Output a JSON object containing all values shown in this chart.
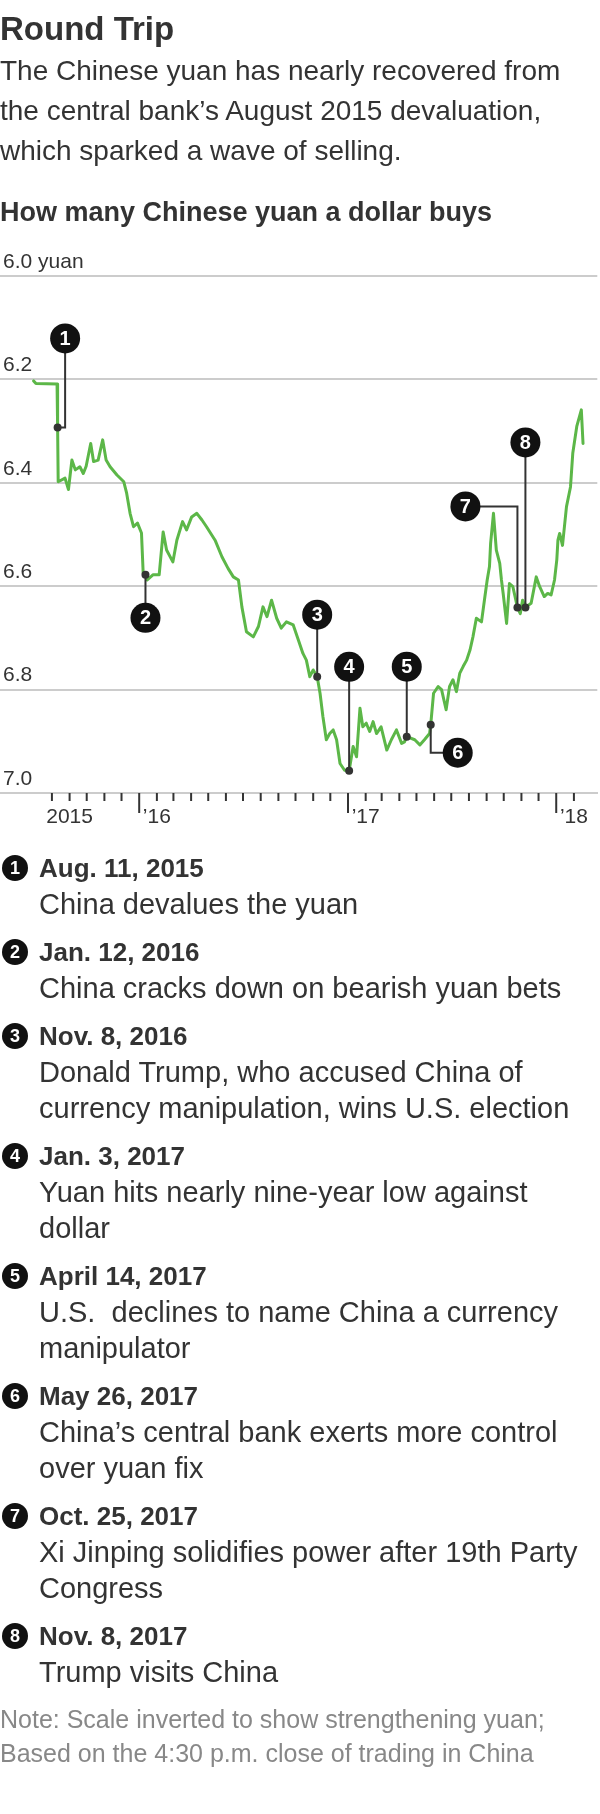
{
  "chart_data": {
    "type": "line",
    "title": "Round Trip",
    "subtitle": "The Chinese yuan has nearly recovered from the central bank’s August 2015 devaluation, which sparked a wave of selling.",
    "ylabel": "How many Chinese yuan a dollar buys",
    "x": [
      "2015-06-30",
      "2015-07-04",
      "2015-08-10",
      "2015-08-11",
      "2015-08-12",
      "2015-08-24",
      "2015-08-30",
      "2015-09-05",
      "2015-09-11",
      "2015-09-19",
      "2015-09-25",
      "2015-09-30",
      "2015-10-08",
      "2015-10-13",
      "2015-10-21",
      "2015-10-29",
      "2015-11-04",
      "2015-11-11",
      "2015-11-23",
      "2015-12-05",
      "2015-12-10",
      "2015-12-16",
      "2015-12-22",
      "2015-12-29",
      "2016-01-05",
      "2016-01-08",
      "2016-01-12",
      "2016-01-15",
      "2016-01-25",
      "2016-02-05",
      "2016-02-12",
      "2016-02-18",
      "2016-02-29",
      "2016-03-07",
      "2016-03-17",
      "2016-03-24",
      "2016-04-02",
      "2016-04-11",
      "2016-04-20",
      "2016-04-28",
      "2016-05-13",
      "2016-05-25",
      "2016-06-05",
      "2016-06-14",
      "2016-06-23",
      "2016-06-29",
      "2016-07-07",
      "2016-07-19",
      "2016-07-28",
      "2016-08-05",
      "2016-08-12",
      "2016-08-20",
      "2016-08-29",
      "2016-09-06",
      "2016-09-15",
      "2016-09-27",
      "2016-10-06",
      "2016-10-14",
      "2016-10-20",
      "2016-10-26",
      "2016-11-01",
      "2016-11-08",
      "2016-11-13",
      "2016-11-18",
      "2016-11-24",
      "2016-11-30",
      "2016-12-06",
      "2016-12-12",
      "2016-12-18",
      "2016-12-26",
      "2017-01-03",
      "2017-01-10",
      "2017-01-16",
      "2017-01-22",
      "2017-01-27",
      "2017-02-02",
      "2017-02-08",
      "2017-02-14",
      "2017-02-20",
      "2017-02-28",
      "2017-03-10",
      "2017-03-18",
      "2017-03-27",
      "2017-04-05",
      "2017-04-10",
      "2017-04-14",
      "2017-04-28",
      "2017-05-07",
      "2017-05-15",
      "2017-05-24",
      "2017-05-26",
      "2017-05-31",
      "2017-06-08",
      "2017-06-14",
      "2017-06-22",
      "2017-06-28",
      "2017-07-04",
      "2017-07-10",
      "2017-07-16",
      "2017-07-22",
      "2017-07-28",
      "2017-08-03",
      "2017-08-08",
      "2017-08-14",
      "2017-08-23",
      "2017-08-29",
      "2017-09-02",
      "2017-09-06",
      "2017-09-08",
      "2017-09-13",
      "2017-09-18",
      "2017-09-24",
      "2017-09-27",
      "2017-09-30",
      "2017-10-06",
      "2017-10-11",
      "2017-10-17",
      "2017-10-25",
      "2017-10-30",
      "2017-11-03",
      "2017-11-08",
      "2017-11-18",
      "2017-11-27",
      "2017-12-03",
      "2017-12-11",
      "2017-12-17",
      "2017-12-23",
      "2017-12-29",
      "2018-01-02",
      "2018-01-04",
      "2018-01-07",
      "2018-01-12",
      "2018-01-19",
      "2018-01-26",
      "2018-01-30",
      "2018-02-06",
      "2018-02-14",
      "2018-02-17"
    ],
    "series": [
      {
        "color": "#5cb748",
        "values": [
          6.203,
          6.208,
          6.209,
          6.293,
          6.398,
          6.391,
          6.413,
          6.356,
          6.375,
          6.369,
          6.382,
          6.368,
          6.324,
          6.359,
          6.356,
          6.317,
          6.356,
          6.369,
          6.385,
          6.398,
          6.42,
          6.459,
          6.485,
          6.478,
          6.497,
          6.575,
          6.578,
          6.588,
          6.578,
          6.578,
          6.495,
          6.53,
          6.553,
          6.511,
          6.475,
          6.491,
          6.466,
          6.459,
          6.472,
          6.485,
          6.511,
          6.543,
          6.566,
          6.582,
          6.588,
          6.64,
          6.688,
          6.698,
          6.678,
          6.64,
          6.659,
          6.627,
          6.662,
          6.681,
          6.669,
          6.675,
          6.704,
          6.73,
          6.743,
          6.775,
          6.762,
          6.775,
          6.807,
          6.852,
          6.897,
          6.885,
          6.878,
          6.897,
          6.943,
          6.956,
          6.957,
          6.91,
          6.93,
          6.836,
          6.872,
          6.865,
          6.881,
          6.862,
          6.885,
          6.872,
          6.917,
          6.897,
          6.878,
          6.904,
          6.901,
          6.891,
          6.897,
          6.907,
          6.897,
          6.885,
          6.868,
          6.807,
          6.794,
          6.8,
          6.839,
          6.794,
          6.781,
          6.804,
          6.768,
          6.755,
          6.743,
          6.723,
          6.698,
          6.662,
          6.669,
          6.62,
          6.588,
          6.562,
          6.517,
          6.459,
          6.53,
          6.556,
          6.588,
          6.614,
          6.672,
          6.595,
          6.601,
          6.641,
          6.653,
          6.627,
          6.641,
          6.633,
          6.582,
          6.601,
          6.62,
          6.614,
          6.617,
          6.588,
          6.549,
          6.511,
          6.498,
          6.521,
          6.446,
          6.408,
          6.343,
          6.291,
          6.259,
          6.324
        ]
      }
    ],
    "xlim": [
      "2015-05-02",
      "2018-03-14"
    ],
    "xticks": [
      {
        "value": "2015-08-01",
        "label": null
      },
      {
        "value": "2015-09-01",
        "label": "2015"
      },
      {
        "value": "2015-10-01",
        "label": null
      },
      {
        "value": "2015-11-01",
        "label": null
      },
      {
        "value": "2015-12-01",
        "label": null
      },
      {
        "value": "2016-01-01",
        "label": null
      },
      {
        "value": "2016-02-01",
        "label": "’16"
      },
      {
        "value": "2016-03-01",
        "label": null
      },
      {
        "value": "2016-04-01",
        "label": null
      },
      {
        "value": "2016-05-01",
        "label": null
      },
      {
        "value": "2016-06-01",
        "label": null
      },
      {
        "value": "2016-07-01",
        "label": null
      },
      {
        "value": "2016-08-01",
        "label": null
      },
      {
        "value": "2016-09-01",
        "label": null
      },
      {
        "value": "2016-10-01",
        "label": null
      },
      {
        "value": "2016-11-01",
        "label": null
      },
      {
        "value": "2016-12-01",
        "label": null
      },
      {
        "value": "2017-01-01",
        "label": null
      },
      {
        "value": "2017-02-01",
        "label": "’17"
      },
      {
        "value": "2017-03-01",
        "label": null
      },
      {
        "value": "2017-04-01",
        "label": null
      },
      {
        "value": "2017-05-01",
        "label": null
      },
      {
        "value": "2017-06-01",
        "label": null
      },
      {
        "value": "2017-07-01",
        "label": null
      },
      {
        "value": "2017-08-01",
        "label": null
      },
      {
        "value": "2017-09-01",
        "label": null
      },
      {
        "value": "2017-10-01",
        "label": null
      },
      {
        "value": "2017-11-01",
        "label": null
      },
      {
        "value": "2017-12-01",
        "label": null
      },
      {
        "value": "2018-01-01",
        "label": null
      },
      {
        "value": "2018-02-01",
        "label": "’18"
      }
    ],
    "ylim": [
      7,
      6
    ],
    "yticks": [
      {
        "value": 6,
        "label": "6.0 yuan"
      },
      6.2,
      6.4,
      6.6,
      6.8,
      {
        "value": 7,
        "label": "7.0"
      }
    ],
    "grid": "y",
    "annotations": [
      {
        "text": "1",
        "x": "2015-08-11",
        "y": 6.293
      },
      {
        "text": "2",
        "x": "2016-01-12",
        "y": 6.578
      },
      {
        "text": "3",
        "x": "2016-11-08",
        "y": 6.775
      },
      {
        "text": "4",
        "x": "2017-01-03",
        "y": 6.957
      },
      {
        "text": "5",
        "x": "2017-04-14",
        "y": 6.891
      },
      {
        "text": "6",
        "x": "2017-05-26",
        "y": 6.868
      },
      {
        "text": "7",
        "x": "2017-10-25",
        "y": 6.641
      },
      {
        "text": "8",
        "x": "2017-11-08",
        "y": 6.641
      },
      "Aug. 11, 2015",
      "China devalues the yuan",
      "Jan. 12, 2016",
      "China cracks down on bearish yuan bets",
      "Nov. 8, 2016",
      "Donald Trump, who accused China of currency manipulation, wins U.S. election",
      "Jan. 3, 2017",
      "Yuan hits nearly nine-year low against dollar",
      "April 14, 2017",
      "U.S.  declines to name China a currency manipulator",
      "May 26, 2017",
      "China’s central bank exerts more control over yuan fix",
      "Oct. 25, 2017",
      "Xi Jinping solidifies power after 19th Party Congress",
      "Nov. 8, 2017",
      "Trump visits China",
      "Note: Scale inverted to show strengthening yuan;",
      "Based on the 4:30 p.m. close of trading in China"
    ]
  }
}
